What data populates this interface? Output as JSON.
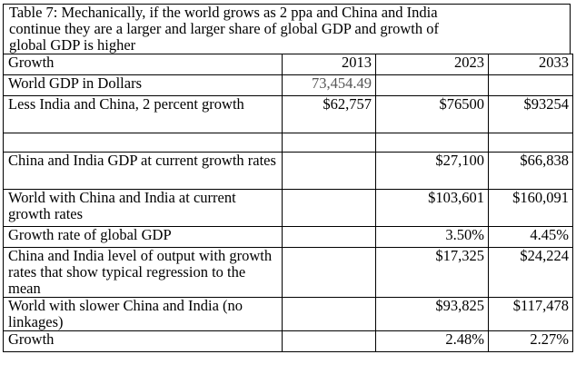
{
  "table": {
    "caption_lines": [
      "Table 7:  Mechanically, if the world grows as 2 ppa and China and India",
      "continue they are a larger and larger share of global GDP and growth of",
      "global GDP is higher"
    ],
    "header": {
      "label": "Growth",
      "col2013": "2013",
      "col2023": "2023",
      "col2033": "2033"
    },
    "rows": [
      {
        "label": "World GDP in Dollars",
        "v2013": "73,454.49",
        "v2023": "",
        "v2033": ""
      },
      {
        "label": "Less India and China, 2 percent growth",
        "v2013": "$62,757",
        "v2023": "$76500",
        "v2033": "$93254"
      },
      {
        "label": "",
        "v2013": "",
        "v2023": "",
        "v2033": ""
      },
      {
        "label": "China and India GDP at current growth rates",
        "v2013": "",
        "v2023": "$27,100",
        "v2033": "$66,838"
      },
      {
        "label": "World with China and India at current growth rates",
        "v2013": "",
        "v2023": "$103,601",
        "v2033": "$160,091"
      },
      {
        "label": "Growth rate of global GDP",
        "v2013": "",
        "v2023": "3.50%",
        "v2033": "4.45%"
      },
      {
        "label": "China and India level of output with growth rates that show typical regression to the mean",
        "v2013": "",
        "v2023": "$17,325",
        "v2033": "$24,224"
      },
      {
        "label": "World with slower China and India (no linkages)",
        "v2013": "",
        "v2023": "$93,825",
        "v2033": "$117,478"
      },
      {
        "label": "Growth",
        "v2013": "",
        "v2023": "2.48%",
        "v2033": "2.27%"
      }
    ]
  }
}
